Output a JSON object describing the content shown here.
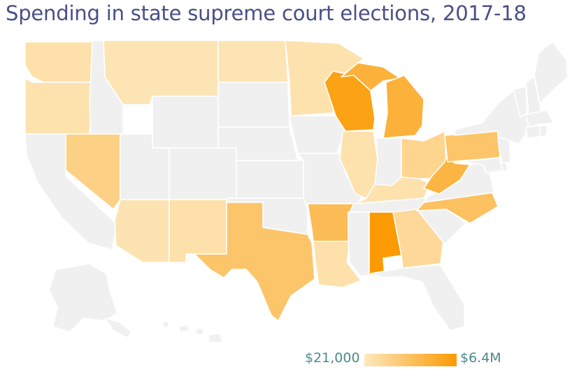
{
  "title": "Spending in state supreme court elections, 2017-18",
  "legend": {
    "min_label": "$21,000",
    "max_label": "$6.4M",
    "colors": {
      "low": "#fde8bd",
      "high": "#fb9a02",
      "no_data": "#f0f0f0"
    }
  },
  "map": {
    "projection": "albers-usa",
    "shading": [
      {
        "state": "WA",
        "level": 0.1
      },
      {
        "state": "OR",
        "level": 0.08
      },
      {
        "state": "MT",
        "level": 0.05
      },
      {
        "state": "ND",
        "level": 0.05
      },
      {
        "state": "MN",
        "level": 0.08
      },
      {
        "state": "NV",
        "level": 0.3
      },
      {
        "state": "AZ",
        "level": 0.06
      },
      {
        "state": "NM",
        "level": 0.1
      },
      {
        "state": "TX",
        "level": 0.45
      },
      {
        "state": "AR",
        "level": 0.55
      },
      {
        "state": "LA",
        "level": 0.1
      },
      {
        "state": "WI",
        "level": 0.9
      },
      {
        "state": "MI",
        "level": 0.7
      },
      {
        "state": "IL",
        "level": 0.08
      },
      {
        "state": "KY",
        "level": 0.08
      },
      {
        "state": "OH",
        "level": 0.25
      },
      {
        "state": "WV",
        "level": 0.65
      },
      {
        "state": "PA",
        "level": 0.45
      },
      {
        "state": "NC",
        "level": 0.5
      },
      {
        "state": "GA",
        "level": 0.2
      },
      {
        "state": "AL",
        "level": 1.0
      }
    ]
  }
}
